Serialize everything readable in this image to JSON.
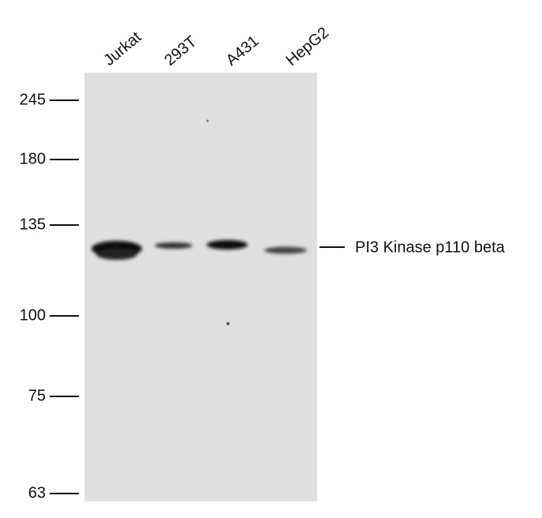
{
  "lanes": [
    "Jurkat",
    "293T",
    "A431",
    "HepG2"
  ],
  "markers": [
    "245",
    "180",
    "135",
    "100",
    "75",
    "63"
  ],
  "band_label": "PI3 Kinase p110 beta"
}
